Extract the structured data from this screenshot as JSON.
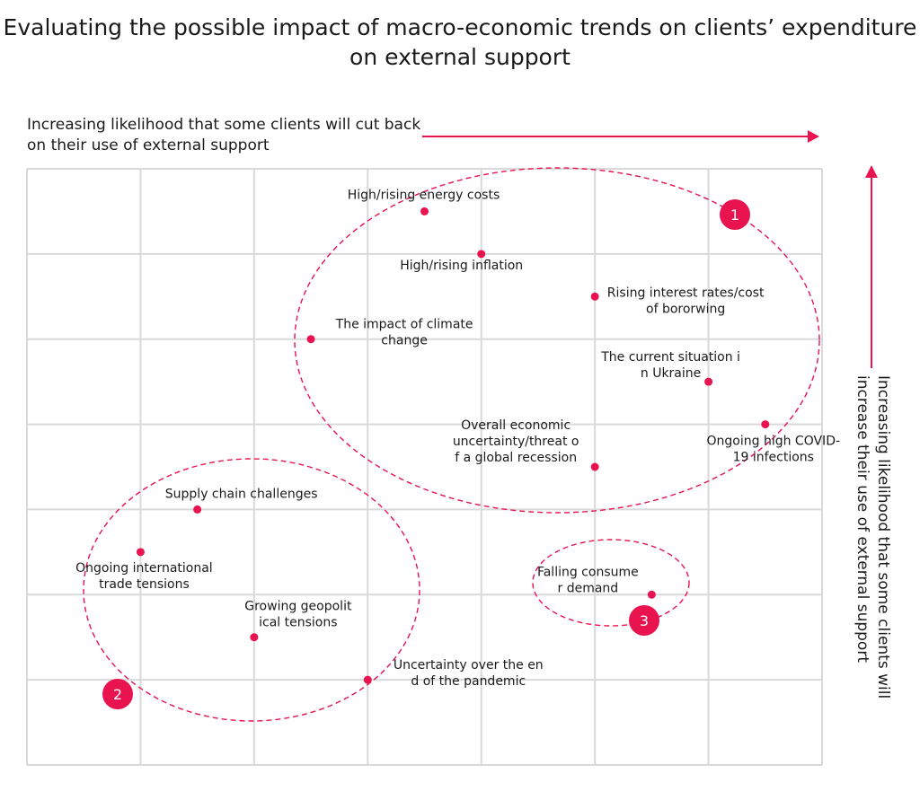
{
  "chart_data": {
    "type": "scatter",
    "title": "Evaluating the possible impact of macro-economic trends on clients’ expenditure on external support",
    "xlabel": "Increasing likelihood that some clients will cut back on their use of external support",
    "ylabel": "Increasing likelihood that some clients will increase their use of external support",
    "xlim": [
      0,
      7
    ],
    "ylim": [
      0,
      7
    ],
    "grid": true,
    "colors": {
      "accent": "#e8134f",
      "grid": "#d9d9d9",
      "text": "#1a1a1a"
    },
    "points": [
      {
        "label": "High/rising energy costs",
        "x": 3.5,
        "y": 6.5
      },
      {
        "label": "High/rising inflation",
        "x": 4.0,
        "y": 6.0
      },
      {
        "label": "Rising interest rates/cost of bororwing",
        "x": 5.0,
        "y": 5.5
      },
      {
        "label": "The impact of climate change",
        "x": 2.5,
        "y": 5.0
      },
      {
        "label": "The current situation in Ukraine",
        "x": 6.0,
        "y": 4.5
      },
      {
        "label": "Ongoing high COVID-19 infections",
        "x": 6.5,
        "y": 4.0
      },
      {
        "label": "Overall economic uncertainty/threat of a global recession",
        "x": 5.0,
        "y": 3.5
      },
      {
        "label": "Supply chain challenges",
        "x": 1.5,
        "y": 3.0
      },
      {
        "label": "Ongoing international trade tensions",
        "x": 1.0,
        "y": 2.5
      },
      {
        "label": "Falling consumer demand",
        "x": 5.5,
        "y": 2.0
      },
      {
        "label": "Growing geopolitical tensions",
        "x": 2.0,
        "y": 1.5
      },
      {
        "label": "Uncertainty over the end of the pandemic",
        "x": 3.0,
        "y": 1.0
      }
    ],
    "clusters": [
      {
        "label": "1"
      },
      {
        "label": "2"
      },
      {
        "label": "3"
      }
    ]
  }
}
